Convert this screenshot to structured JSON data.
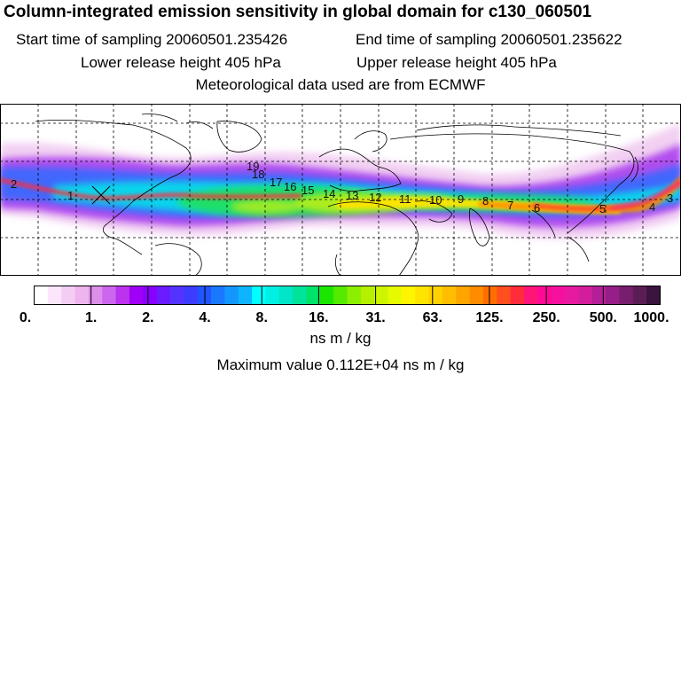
{
  "header": {
    "title": "Column-integrated emission sensitivity in global domain for c130_060501",
    "start_sampling": "Start time of sampling 20060501.235426",
    "end_sampling": "End time of sampling 20060501.235622",
    "lower_release": "Lower release height  405 hPa",
    "upper_release": "Upper release height  405 hPa",
    "met_data": "Meteorological data used are from ECMWF"
  },
  "colorbar": {
    "tick_labels": [
      "0.",
      "1.",
      "2.",
      "4.",
      "8.",
      "16.",
      "31.",
      "63.",
      "125.",
      "250.",
      "500.",
      "1000."
    ],
    "colors": [
      "#ffffff",
      "#fbe6fb",
      "#f4cdf4",
      "#eeb4ee",
      "#dd8ee9",
      "#cc66ee",
      "#bb33ee",
      "#a000f5",
      "#8800ff",
      "#6a1bff",
      "#5533ff",
      "#3c3cff",
      "#2255ff",
      "#1a78ff",
      "#1496ff",
      "#0fb4ff",
      "#00ffff",
      "#00f0e4",
      "#00e6c6",
      "#00e39a",
      "#00e36a",
      "#1ae600",
      "#55ea00",
      "#8cee00",
      "#b4f000",
      "#cdf500",
      "#e6fa00",
      "#fff500",
      "#ffe400",
      "#ffd200",
      "#ffbe00",
      "#ffa500",
      "#ff8c00",
      "#ff6e00",
      "#ff4f1e",
      "#ff2d3c",
      "#ff1478",
      "#ff0a96",
      "#f5119e",
      "#e619a0",
      "#d21e9a",
      "#b41e96",
      "#961e88",
      "#781e6e",
      "#5a1e55",
      "#3c1440"
    ],
    "units": "ns m / kg",
    "max_value": "Maximum value  0.112E+04 ns m / kg"
  },
  "map": {
    "plume_colors": {
      "faint": "#f0c8f0",
      "purple": "#aa40ee",
      "blue": "#2f6cff",
      "cyan": "#00e8e8",
      "green": "#22e24a",
      "yellow_green": "#bdee12",
      "yellow": "#ffe400",
      "orange": "#ff8c00",
      "red": "#ff2d3c",
      "magenta": "#ff14a0"
    },
    "trajectory_labels": [
      "2",
      "1",
      "19",
      "18",
      "17",
      "16",
      "15",
      "14",
      "13",
      "12",
      "11",
      "10",
      "9",
      "8",
      "7",
      "6",
      "5",
      "4",
      "3"
    ]
  }
}
